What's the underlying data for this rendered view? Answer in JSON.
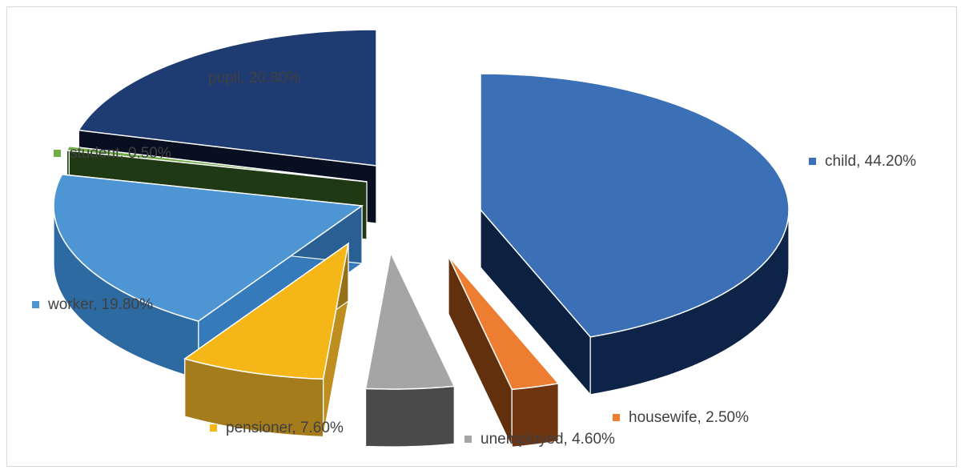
{
  "chart_data": {
    "type": "pie",
    "title": "",
    "slices": [
      {
        "name": "child",
        "value": 44.2,
        "label": "child, 44.20%",
        "color": "#3b6fb6",
        "side": "#0d2348"
      },
      {
        "name": "housewife",
        "value": 2.5,
        "label": "housewife, 2.50%",
        "color": "#ed7d31",
        "side": "#6e3510"
      },
      {
        "name": "unemployed",
        "value": 4.6,
        "label": "unemployed, 4.60%",
        "color": "#a5a5a5",
        "side": "#4a4a4a"
      },
      {
        "name": "pensioner",
        "value": 7.6,
        "label": "pensioner, 7.60%",
        "color": "#f5b617",
        "side": "#a57c1c"
      },
      {
        "name": "worker",
        "value": 19.8,
        "label": "worker, 19.80%",
        "color": "#4e95d3",
        "side": "#2e6aa2"
      },
      {
        "name": "student",
        "value": 0.5,
        "label": "student, 0.50%",
        "color": "#70ad47",
        "side": "#243f17"
      },
      {
        "name": "pupil",
        "value": 20.8,
        "label": "pupil, 20.80%",
        "color": "#1f3c72",
        "side": "#070d1c"
      }
    ],
    "legend": "data labels beside slices",
    "style": "3d exploded"
  }
}
